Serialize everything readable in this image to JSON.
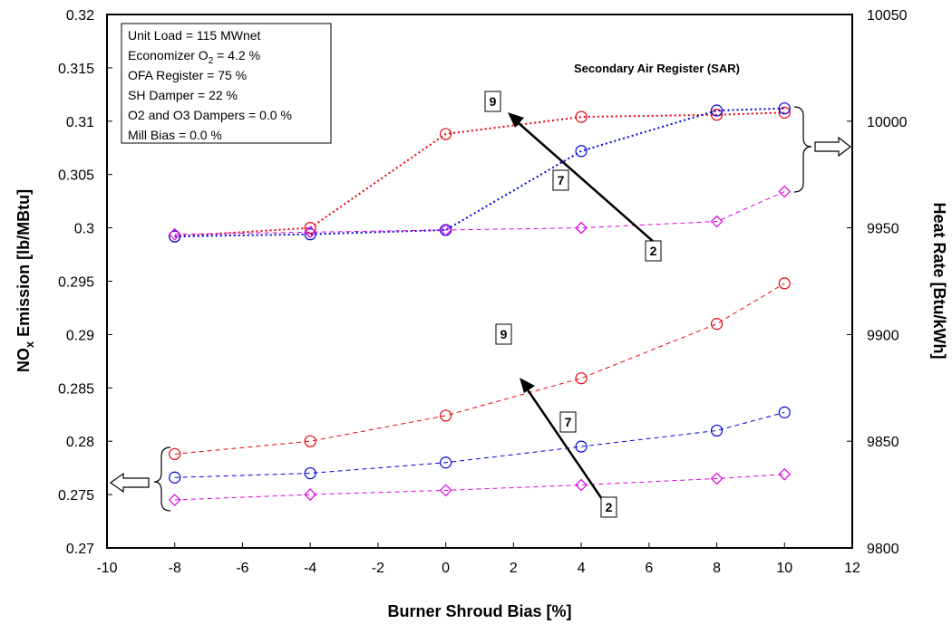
{
  "chart_data": {
    "type": "line",
    "xlabel": "Burner Shroud Bias [%]",
    "ylabel_left": "NOx Emission [lb/MBtu]",
    "ylabel_right": "Heat Rate [Btu/kWh]",
    "xlim": [
      -10,
      12
    ],
    "xticks": [
      -10,
      -8,
      -6,
      -4,
      -2,
      0,
      2,
      4,
      6,
      8,
      10,
      12
    ],
    "ylim_left": [
      0.27,
      0.32
    ],
    "yticks_left": [
      0.27,
      0.275,
      0.28,
      0.285,
      0.29,
      0.295,
      0.3,
      0.305,
      0.31,
      0.315,
      0.32
    ],
    "ylim_right": [
      9800,
      10050
    ],
    "yticks_right": [
      9800,
      9850,
      9900,
      9950,
      10000,
      10050
    ],
    "annotation_box": [
      "Unit Load = 115 MWnet",
      "Economizer O2 = 4.2 %",
      "OFA Register = 75 %",
      "SH Damper = 22 %",
      "O2 and O3 Dampers = 0.0 %",
      "Mill Bias = 0.0 %"
    ],
    "sar_label": "Secondary Air Register (SAR)",
    "arrow_labels": {
      "upper": [
        "9",
        "7",
        "2"
      ],
      "lower": [
        "9",
        "7",
        "2"
      ]
    },
    "heat_rate_series": [
      {
        "marker": "circle",
        "color": "#e8000b",
        "style": "dotted",
        "x": [
          -8,
          -4,
          0,
          4,
          8,
          10
        ],
        "values": [
          9946,
          9950,
          9994,
          10002,
          10003,
          10004
        ]
      },
      {
        "marker": "circle",
        "color": "#0000e0",
        "style": "dotted",
        "x": [
          -8,
          -4,
          0,
          4,
          8,
          10
        ],
        "values": [
          9946,
          9947,
          9949,
          9986,
          10005,
          10006
        ]
      },
      {
        "marker": "diamond",
        "color": "#e000e0",
        "style": "dashed",
        "x": [
          -8,
          -4,
          0,
          4,
          8,
          10
        ],
        "values": [
          9947,
          9948,
          9949,
          9950,
          9953,
          9967
        ]
      }
    ],
    "nox_series": [
      {
        "marker": "circle",
        "color": "#e8000b",
        "style": "dashed",
        "x": [
          -8,
          -4,
          0,
          4,
          8,
          10
        ],
        "values": [
          0.2788,
          0.28,
          0.2824,
          0.2859,
          0.291,
          0.2948
        ]
      },
      {
        "marker": "circle",
        "color": "#0000e0",
        "style": "dashed",
        "x": [
          -8,
          -4,
          0,
          4,
          8,
          10
        ],
        "values": [
          0.2766,
          0.277,
          0.278,
          0.2795,
          0.281,
          0.2827
        ]
      },
      {
        "marker": "diamond",
        "color": "#e000e0",
        "style": "dashed",
        "x": [
          -8,
          -4,
          0,
          4,
          8,
          10
        ],
        "values": [
          0.2745,
          0.275,
          0.2754,
          0.2759,
          0.2765,
          0.2769
        ]
      }
    ]
  }
}
